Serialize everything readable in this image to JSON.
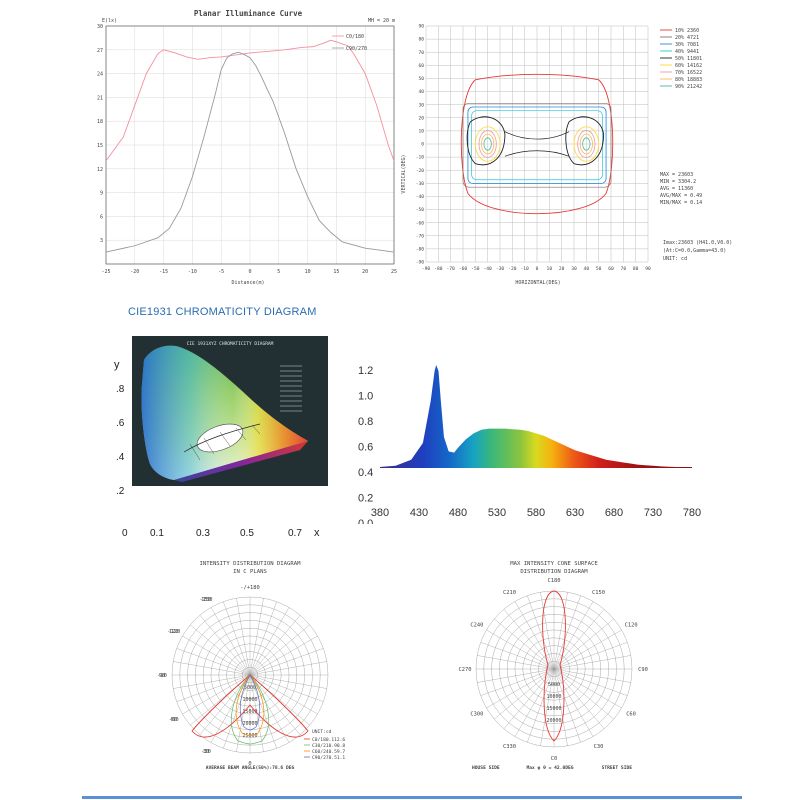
{
  "planar": {
    "title": "Planar Illuminance Curve",
    "ylabel": "E(lx)",
    "xlabel": "Distance(m)",
    "mh_label": "MH = 20 m",
    "legend": [
      "C0/180",
      "C90/270"
    ],
    "xticks": [
      "-25",
      "-20",
      "-15",
      "-10",
      "-5",
      "0",
      "5",
      "10",
      "15",
      "20",
      "25"
    ],
    "yticks": [
      "30",
      "27",
      "24",
      "21",
      "18",
      "15",
      "12",
      "9",
      "6",
      "3"
    ]
  },
  "isolux": {
    "ylabel": "VERTICAL(DEG)",
    "xlabel": "HORIZONTAL(DEG)",
    "xticks": [
      "-90",
      "-80",
      "-70",
      "-60",
      "-50",
      "-40",
      "-30",
      "-20",
      "-10",
      "0",
      "10",
      "20",
      "30",
      "40",
      "50",
      "60",
      "70",
      "80",
      "90"
    ],
    "yticks": [
      "90",
      "80",
      "70",
      "60",
      "50",
      "40",
      "30",
      "20",
      "10",
      "0",
      "-10",
      "-20",
      "-30",
      "-40",
      "-50",
      "-60",
      "-70",
      "-80",
      "-90"
    ],
    "legend": [
      {
        "label": "10% 2360",
        "color": "#e53935"
      },
      {
        "label": "20% 4721",
        "color": "#8d6e63"
      },
      {
        "label": "30% 7081",
        "color": "#1e88e5"
      },
      {
        "label": "40% 9441",
        "color": "#26c6da"
      },
      {
        "label": "50% 11801",
        "color": "#212121"
      },
      {
        "label": "60% 14162",
        "color": "#fdd835"
      },
      {
        "label": "70% 16522",
        "color": "#ef9a9a"
      },
      {
        "label": "80% 18883",
        "color": "#ffb74d"
      },
      {
        "label": "90% 21242",
        "color": "#4db6ac"
      }
    ],
    "stats": [
      "MAX = 23603",
      "MIN = 3304.2",
      "AVG = 11360",
      "AVG/MAX = 0.49",
      "MIN/MAX = 0.14"
    ],
    "info": [
      "Imax:23603 (H41.0,V0.0)",
      "(At:C=0.0,Gamma=43.0)",
      "UNIT: cd"
    ]
  },
  "cie": {
    "heading": "CIE1931 CHROMATICITY DIAGRAM",
    "inner_title": "CIE 1931XYZ CHROMATICITY DIAGRAM",
    "y_axis": "y",
    "x_axis": "x",
    "yticks": [
      ".8",
      ".6",
      ".4",
      ".2"
    ],
    "xticks": [
      "0",
      "0.1",
      "0.3",
      "0.5",
      "0.7"
    ]
  },
  "spectrum": {
    "yticks": [
      "1.2",
      "1.0",
      "0.8",
      "0.6",
      "0.4",
      "0.2",
      "0.0"
    ],
    "xticks": [
      "380",
      "430",
      "480",
      "530",
      "580",
      "630",
      "680",
      "730",
      "780"
    ]
  },
  "polar_c": {
    "title1": "INTENSITY DISTRIBUTION DIAGRAM",
    "title2": "IN C PLANS",
    "angles": [
      "-/+180",
      "150",
      "120",
      "90",
      "60",
      "30",
      "-30",
      "-60",
      "-90",
      "-120",
      "-150",
      "0"
    ],
    "rings": [
      "5000",
      "10000",
      "15000",
      "20000",
      "25000"
    ],
    "legend_title": "UNIT:cd",
    "legend": [
      "C0/180.112.6",
      "C30/210.90.8",
      "C60/240.59.7",
      "C90/270.51.1"
    ],
    "footer": "AVERAGE BEAM ANGLE(50%):78.6 DEG"
  },
  "cone": {
    "title1": "MAX INTENSITY CONE SURFACE",
    "title2": "DISTRIBUTION DIAGRAM",
    "angles": [
      "C180",
      "C150",
      "C120",
      "C90",
      "C60",
      "C30",
      "C0",
      "C330",
      "C300",
      "C270",
      "C240",
      "C210"
    ],
    "rings": [
      "5000",
      "10000",
      "15000",
      "20000"
    ],
    "footer_left": "HOUSE SIDE",
    "footer_mid": "Max φ θ = 42.0DEG",
    "footer_right": "STREET SIDE"
  },
  "chart_data": [
    {
      "type": "line",
      "title": "Planar Illuminance Curve",
      "xlabel": "Distance(m)",
      "ylabel": "E(lx)",
      "xlim": [
        -25,
        25
      ],
      "ylim": [
        0,
        30
      ],
      "grid": true,
      "legend_placement": "top-right",
      "series": [
        {
          "name": "C0/180",
          "color": "#f48fa0",
          "x": [
            -25,
            -22,
            -20,
            -18,
            -16,
            -15,
            -13,
            -11,
            -9,
            -7,
            -5,
            -3,
            0,
            3,
            6,
            9,
            11,
            13,
            14,
            15,
            17,
            18,
            20,
            22,
            24,
            25
          ],
          "y": [
            13,
            16,
            20,
            24,
            26.5,
            27,
            26.6,
            26.1,
            25.8,
            26,
            26.1,
            26.3,
            26.6,
            26.8,
            27,
            27.3,
            27.4,
            27.9,
            28.2,
            28,
            27.5,
            26.5,
            24,
            20,
            15,
            13
          ]
        },
        {
          "name": "C90/270",
          "color": "#999999",
          "x": [
            -25,
            -20,
            -16,
            -14,
            -12,
            -10,
            -8,
            -6,
            -5,
            -4,
            -3,
            -2,
            -1,
            0,
            1,
            2,
            3,
            4,
            6,
            8,
            10,
            12,
            14,
            16,
            20,
            25
          ],
          "y": [
            1.5,
            2.3,
            3.3,
            4.5,
            7,
            11,
            16,
            21.5,
            24.5,
            26,
            26.5,
            26.7,
            26.4,
            26,
            25,
            23.6,
            22,
            20.5,
            16.5,
            12,
            8.5,
            5.5,
            4,
            2.8,
            2,
            1.5
          ]
        }
      ]
    },
    {
      "type": "line",
      "xlim": [
        380,
        780
      ],
      "ylim": [
        0,
        1.3
      ],
      "series": [
        {
          "x": [
            380,
            400,
            420,
            435,
            445,
            450,
            452,
            455,
            458,
            462,
            468,
            475,
            480,
            490,
            500,
            510,
            520,
            530,
            540,
            550,
            560,
            570,
            580,
            590,
            600,
            610,
            620,
            630,
            640,
            650,
            660,
            670,
            680,
            690,
            700,
            710,
            720,
            730,
            740,
            750,
            760,
            770,
            780
          ],
          "y": [
            0.4,
            0.41,
            0.46,
            0.6,
            0.95,
            1.2,
            1.25,
            1.2,
            0.95,
            0.65,
            0.53,
            0.52,
            0.56,
            0.63,
            0.68,
            0.71,
            0.72,
            0.72,
            0.72,
            0.715,
            0.71,
            0.7,
            0.68,
            0.66,
            0.63,
            0.6,
            0.57,
            0.54,
            0.52,
            0.5,
            0.48,
            0.46,
            0.45,
            0.44,
            0.43,
            0.42,
            0.415,
            0.41,
            0.405,
            0.402,
            0.4,
            0.4,
            0.4
          ]
        }
      ]
    }
  ]
}
